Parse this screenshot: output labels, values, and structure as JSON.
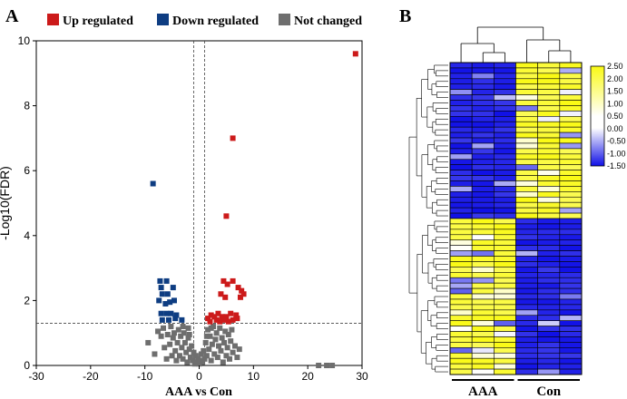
{
  "chart_data": [
    {
      "panel": "A",
      "type": "scatter",
      "title": "",
      "xlabel": "AAA vs Con",
      "ylabel": "-Log10(FDR)",
      "xlim": [
        -30,
        30
      ],
      "ylim": [
        0,
        10
      ],
      "xticks": [
        "-30",
        "-20",
        "-10",
        "0",
        "10",
        "20",
        "30"
      ],
      "yticks": [
        "0",
        "2",
        "4",
        "6",
        "8",
        "10"
      ],
      "threshold_lines": {
        "vertical": [
          -1,
          1
        ],
        "horizontal": 1.3
      },
      "legend": [
        {
          "label": "Up regulated",
          "color": "#cc1a1a"
        },
        {
          "label": "Down regulated",
          "color": "#0e3d82"
        },
        {
          "label": "Not changed",
          "color": "#6e6e6e"
        }
      ],
      "series": [
        {
          "name": "Up regulated",
          "color": "#cc1a1a",
          "points": [
            [
              28.8,
              9.6
            ],
            [
              6.2,
              7.0
            ],
            [
              5.0,
              4.6
            ],
            [
              5.2,
              2.5
            ],
            [
              6.2,
              2.6
            ],
            [
              4.5,
              2.6
            ],
            [
              7.2,
              2.4
            ],
            [
              7.8,
              2.3
            ],
            [
              8.2,
              2.2
            ],
            [
              4.0,
              2.2
            ],
            [
              4.8,
              2.1
            ],
            [
              7.6,
              2.1
            ],
            [
              3.5,
              1.6
            ],
            [
              5.8,
              1.6
            ],
            [
              2.2,
              1.55
            ],
            [
              2.8,
              1.5
            ],
            [
              4.2,
              1.5
            ],
            [
              5.0,
              1.5
            ],
            [
              6.8,
              1.55
            ],
            [
              1.6,
              1.45
            ],
            [
              3.2,
              1.4
            ],
            [
              4.6,
              1.4
            ],
            [
              6.2,
              1.4
            ],
            [
              7.0,
              1.45
            ],
            [
              2.0,
              1.35
            ],
            [
              3.8,
              1.35
            ],
            [
              5.4,
              1.35
            ]
          ]
        },
        {
          "name": "Down regulated",
          "color": "#0e3d82",
          "points": [
            [
              -8.5,
              5.6
            ],
            [
              -7.2,
              2.6
            ],
            [
              -6.0,
              2.6
            ],
            [
              -7.0,
              2.4
            ],
            [
              -4.8,
              2.4
            ],
            [
              -6.8,
              2.2
            ],
            [
              -5.8,
              2.2
            ],
            [
              -7.4,
              2.0
            ],
            [
              -4.6,
              2.0
            ],
            [
              -6.2,
              1.9
            ],
            [
              -5.4,
              1.95
            ],
            [
              -7.0,
              1.6
            ],
            [
              -6.0,
              1.6
            ],
            [
              -5.2,
              1.6
            ],
            [
              -4.2,
              1.55
            ],
            [
              -6.8,
              1.4
            ],
            [
              -5.6,
              1.4
            ],
            [
              -4.4,
              1.45
            ],
            [
              -3.2,
              1.4
            ]
          ]
        },
        {
          "name": "Not changed",
          "color": "#6e6e6e",
          "points": [
            [
              -9.4,
              0.7
            ],
            [
              -8.2,
              0.35
            ],
            [
              -7.6,
              1.05
            ],
            [
              -7.0,
              0.9
            ],
            [
              -6.6,
              1.15
            ],
            [
              -6.4,
              0.55
            ],
            [
              -6.0,
              0.2
            ],
            [
              -5.8,
              0.95
            ],
            [
              -5.4,
              0.65
            ],
            [
              -5.2,
              1.2
            ],
            [
              -5.0,
              0.3
            ],
            [
              -4.8,
              0.85
            ],
            [
              -4.6,
              1.0
            ],
            [
              -4.4,
              0.45
            ],
            [
              -4.2,
              0.15
            ],
            [
              -4.0,
              0.7
            ],
            [
              -3.8,
              1.1
            ],
            [
              -3.6,
              0.3
            ],
            [
              -3.4,
              0.9
            ],
            [
              -3.2,
              0.55
            ],
            [
              -3.0,
              0.2
            ],
            [
              -2.8,
              1.0
            ],
            [
              -2.6,
              0.7
            ],
            [
              -2.4,
              0.4
            ],
            [
              -2.2,
              0.1
            ],
            [
              -2.0,
              0.85
            ],
            [
              -1.8,
              0.5
            ],
            [
              -1.6,
              0.25
            ],
            [
              -1.4,
              0.6
            ],
            [
              -1.2,
              0.15
            ],
            [
              -1.0,
              0.4
            ],
            [
              -0.8,
              0.05
            ],
            [
              -0.6,
              0.3
            ],
            [
              -0.4,
              0.1
            ],
            [
              -0.2,
              0.2
            ],
            [
              0.0,
              0.05
            ],
            [
              0.2,
              0.15
            ],
            [
              0.4,
              0.35
            ],
            [
              0.6,
              0.1
            ],
            [
              0.8,
              0.45
            ],
            [
              1.0,
              0.2
            ],
            [
              1.2,
              0.7
            ],
            [
              1.4,
              0.3
            ],
            [
              1.6,
              1.1
            ],
            [
              1.8,
              0.5
            ],
            [
              2.0,
              0.9
            ],
            [
              2.2,
              0.15
            ],
            [
              2.4,
              0.65
            ],
            [
              2.6,
              1.2
            ],
            [
              2.8,
              0.35
            ],
            [
              3.0,
              0.8
            ],
            [
              3.2,
              1.0
            ],
            [
              3.4,
              0.25
            ],
            [
              3.6,
              0.6
            ],
            [
              3.8,
              1.15
            ],
            [
              4.0,
              0.45
            ],
            [
              4.2,
              0.85
            ],
            [
              4.4,
              0.1
            ],
            [
              4.6,
              0.7
            ],
            [
              4.8,
              1.05
            ],
            [
              5.0,
              0.3
            ],
            [
              5.2,
              0.55
            ],
            [
              5.4,
              0.95
            ],
            [
              5.6,
              0.2
            ],
            [
              5.8,
              0.75
            ],
            [
              6.0,
              1.1
            ],
            [
              6.2,
              0.4
            ],
            [
              6.6,
              0.6
            ],
            [
              7.0,
              0.25
            ],
            [
              7.4,
              0.5
            ],
            [
              -3.0,
              1.2
            ],
            [
              -2.0,
              1.15
            ],
            [
              2.2,
              1.15
            ],
            [
              -1.8,
              0.95
            ],
            [
              1.4,
              0.9
            ],
            [
              22.0,
              0.0
            ],
            [
              23.5,
              0.0
            ],
            [
              24.5,
              0.0
            ]
          ]
        }
      ]
    },
    {
      "panel": "B",
      "type": "heatmap",
      "colorbar": {
        "ticks": [
          "2.50",
          "2.00",
          "1.50",
          "1.00",
          "0.50",
          "0.00",
          "-0.50",
          "-1.00",
          "-1.50"
        ],
        "min": -1.5,
        "max": 2.5
      },
      "groups": [
        {
          "label": "AAA",
          "columns": 3
        },
        {
          "label": "Con",
          "columns": 3
        }
      ],
      "rows_cluster_1": 29,
      "rows_cluster_2": 29
    }
  ],
  "panel_labels": {
    "a": "A",
    "b": "B"
  }
}
